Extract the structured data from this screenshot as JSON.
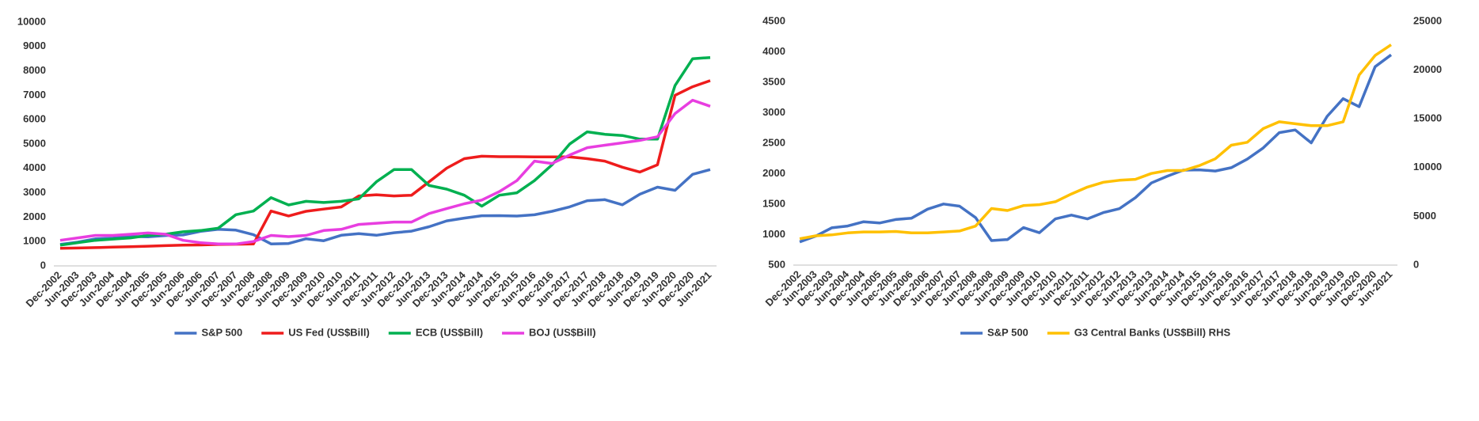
{
  "chart_data": [
    {
      "type": "line",
      "categories": [
        "Dec-2002",
        "Jun-2003",
        "Dec-2003",
        "Jun-2004",
        "Dec-2004",
        "Jun-2005",
        "Dec-2005",
        "Jun-2006",
        "Dec-2006",
        "Jun-2007",
        "Dec-2007",
        "Jun-2008",
        "Dec-2008",
        "Jun-2009",
        "Dec-2009",
        "Jun-2010",
        "Dec-2010",
        "Jun-2011",
        "Dec-2011",
        "Jun-2012",
        "Dec-2012",
        "Jun-2013",
        "Dec-2013",
        "Jun-2014",
        "Dec-2014",
        "Jun-2015",
        "Dec-2015",
        "Jun-2016",
        "Dec-2016",
        "Jun-2017",
        "Dec-2017",
        "Jun-2018",
        "Dec-2018",
        "Jun-2019",
        "Dec-2019",
        "Jun-2020",
        "Dec-2020",
        "Jun-2021"
      ],
      "ylim": [
        0,
        10000
      ],
      "yticks": [
        0,
        1000,
        2000,
        3000,
        4000,
        5000,
        6000,
        7000,
        8000,
        9000,
        10000
      ],
      "grid": false,
      "series": [
        {
          "name": "S&P 500",
          "color": "#4472c4",
          "values": [
            880,
            975,
            1112,
            1141,
            1212,
            1191,
            1248,
            1270,
            1418,
            1503,
            1468,
            1280,
            903,
            919,
            1115,
            1031,
            1258,
            1321,
            1258,
            1362,
            1426,
            1606,
            1848,
            1960,
            2059,
            2063,
            2044,
            2099,
            2239,
            2423,
            2674,
            2718,
            2507,
            2942,
            3231,
            3100,
            3756,
            3950
          ]
        },
        {
          "name": "US Fed (US$Bill)",
          "color": "#ee1c1c",
          "values": [
            720,
            735,
            750,
            770,
            790,
            810,
            830,
            850,
            860,
            880,
            890,
            900,
            2250,
            2050,
            2240,
            2330,
            2420,
            2870,
            2920,
            2870,
            2900,
            3450,
            4010,
            4400,
            4500,
            4480,
            4480,
            4470,
            4470,
            4470,
            4400,
            4300,
            4050,
            3850,
            4150,
            7000,
            7350,
            7600
          ]
        },
        {
          "name": "ECB (US$Bill)",
          "color": "#00b050",
          "values": [
            850,
            950,
            1050,
            1100,
            1150,
            1250,
            1300,
            1400,
            1450,
            1550,
            2100,
            2250,
            2800,
            2500,
            2650,
            2600,
            2650,
            2750,
            3450,
            3950,
            3950,
            3300,
            3150,
            2900,
            2450,
            2900,
            3000,
            3500,
            4150,
            5000,
            5500,
            5400,
            5350,
            5200,
            5200,
            7400,
            8500,
            8550
          ]
        },
        {
          "name": "BOJ (US$Bill)",
          "color": "#e83ee0",
          "values": [
            1050,
            1150,
            1250,
            1250,
            1300,
            1350,
            1300,
            1050,
            950,
            900,
            900,
            1000,
            1250,
            1200,
            1250,
            1450,
            1500,
            1700,
            1750,
            1800,
            1800,
            2150,
            2350,
            2550,
            2700,
            3050,
            3500,
            4300,
            4200,
            4550,
            4850,
            4950,
            5050,
            5150,
            5300,
            6250,
            6800,
            6550
          ]
        }
      ]
    },
    {
      "type": "line",
      "categories": [
        "Dec-2002",
        "Jun-2003",
        "Dec-2003",
        "Jun-2004",
        "Dec-2004",
        "Jun-2005",
        "Dec-2005",
        "Jun-2006",
        "Dec-2006",
        "Jun-2007",
        "Dec-2007",
        "Jun-2008",
        "Dec-2008",
        "Jun-2009",
        "Dec-2009",
        "Jun-2010",
        "Dec-2010",
        "Jun-2011",
        "Dec-2011",
        "Jun-2012",
        "Dec-2012",
        "Jun-2013",
        "Dec-2013",
        "Jun-2014",
        "Dec-2014",
        "Jun-2015",
        "Dec-2015",
        "Jun-2016",
        "Dec-2016",
        "Jun-2017",
        "Dec-2017",
        "Jun-2018",
        "Dec-2018",
        "Jun-2019",
        "Dec-2019",
        "Jun-2020",
        "Dec-2020",
        "Jun-2021"
      ],
      "ylim": [
        500,
        4500
      ],
      "yticks": [
        500,
        1000,
        1500,
        2000,
        2500,
        3000,
        3500,
        4000,
        4500
      ],
      "y2lim": [
        0,
        25000
      ],
      "y2ticks": [
        0,
        5000,
        10000,
        15000,
        20000,
        25000
      ],
      "grid": false,
      "series": [
        {
          "name": "S&P 500",
          "color": "#4472c4",
          "values": [
            880,
            975,
            1112,
            1141,
            1212,
            1191,
            1248,
            1270,
            1418,
            1503,
            1468,
            1280,
            903,
            919,
            1115,
            1031,
            1258,
            1321,
            1258,
            1362,
            1426,
            1606,
            1848,
            1960,
            2059,
            2063,
            2044,
            2099,
            2239,
            2423,
            2674,
            2718,
            2507,
            2942,
            3231,
            3100,
            3756,
            3950
          ]
        },
        {
          "name": "G3 Central Banks (US$Bill) RHS",
          "color": "#ffc000",
          "axis": "y2",
          "values": [
            2700,
            3000,
            3100,
            3300,
            3400,
            3400,
            3450,
            3300,
            3300,
            3400,
            3500,
            4000,
            5800,
            5600,
            6100,
            6200,
            6500,
            7300,
            8000,
            8500,
            8700,
            8800,
            9400,
            9700,
            9700,
            10200,
            10900,
            12300,
            12600,
            14000,
            14700,
            14500,
            14300,
            14300,
            14700,
            19500,
            21500,
            22600
          ]
        }
      ]
    }
  ]
}
